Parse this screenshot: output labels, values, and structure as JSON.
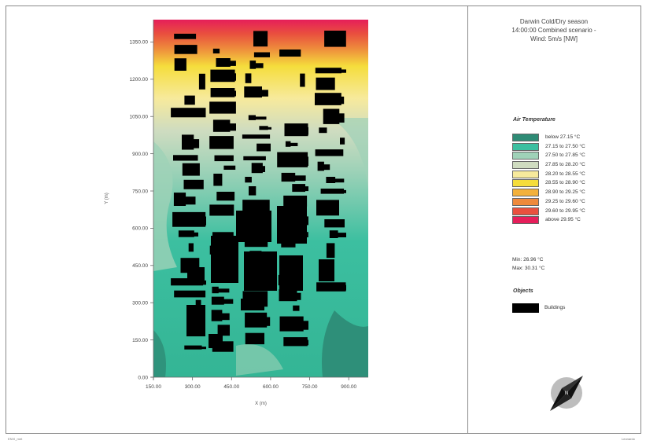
{
  "panel": {
    "title": "Darwin Cold/Dry season\n14:00:00 Combined scenario -\nWind: 5m/s [NW]"
  },
  "legend": {
    "title": "Air Temperature",
    "items": [
      {
        "label": "below 27.15 °C",
        "color": "#2e8b75"
      },
      {
        "label": "27.15 to 27.50 °C",
        "color": "#3cbfa0"
      },
      {
        "label": "27.50 to 27.85 °C",
        "color": "#9fd2b8"
      },
      {
        "label": "27.85 to 28.20 °C",
        "color": "#cfdcc0"
      },
      {
        "label": "28.20 to 28.55 °C",
        "color": "#f7ea9c"
      },
      {
        "label": "28.55 to 28.90 °C",
        "color": "#f5dd3c"
      },
      {
        "label": "28.90 to 29.25 °C",
        "color": "#f3b13b"
      },
      {
        "label": "29.25 to 29.60 °C",
        "color": "#ee8a3c"
      },
      {
        "label": "29.60 to 29.95 °C",
        "color": "#e9503e"
      },
      {
        "label": "above 29.95 °C",
        "color": "#e61e5a"
      }
    ]
  },
  "stats": {
    "min": "Min: 26.96 °C",
    "max": "Max: 30.31 °C"
  },
  "objects": {
    "title": "Objects",
    "buildings_label": "Buildings"
  },
  "footer": {
    "left": "ENVI_met",
    "right": "Leonardo"
  },
  "chart_data": {
    "type": "heatmap",
    "xlabel": "X (m)",
    "ylabel": "Y (m)",
    "x_ticks": [
      "150.00",
      "300.00",
      "450.00",
      "600.00",
      "750.00",
      "900.00"
    ],
    "y_ticks": [
      "0.00",
      "150.00",
      "300.00",
      "450.00",
      "600.00",
      "750.00",
      "900.00",
      "1050.00",
      "1200.00",
      "1350.00"
    ],
    "xlim": [
      150,
      975
    ],
    "ylim": [
      0,
      1440
    ],
    "grid": false,
    "legend_placement": "right panel"
  }
}
